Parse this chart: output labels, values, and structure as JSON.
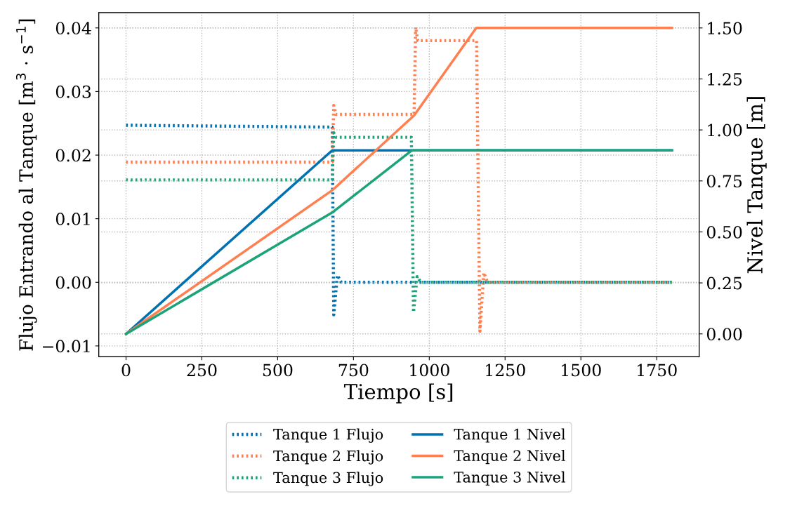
{
  "chart_data": {
    "type": "line",
    "xlabel": "Tiempo [s]",
    "ylabel": "Flujo Entrando al Tanque [m$^{3}$ · s$^{−1}$]",
    "y2label": "Nivel Tanque [m]",
    "xlim": [
      -90,
      1890
    ],
    "xticks": [
      0,
      250,
      500,
      750,
      1000,
      1250,
      1500,
      1750
    ],
    "ylim": [
      -0.0117,
      0.0424
    ],
    "yticks": [
      {
        "value": -0.01,
        "label": "−0.01"
      },
      {
        "value": 0.0,
        "label": "0.00"
      },
      {
        "value": 0.01,
        "label": "0.01"
      },
      {
        "value": 0.02,
        "label": "0.02"
      },
      {
        "value": 0.03,
        "label": "0.03"
      },
      {
        "value": 0.04,
        "label": "0.04"
      }
    ],
    "y2lim": [
      -0.112,
      1.575
    ],
    "y2ticks": [
      {
        "value": 0.0,
        "label": "0.00"
      },
      {
        "value": 0.25,
        "label": "0.25"
      },
      {
        "value": 0.5,
        "label": "0.50"
      },
      {
        "value": 0.75,
        "label": "0.75"
      },
      {
        "value": 1.0,
        "label": "1.00"
      },
      {
        "value": 1.25,
        "label": "1.25"
      },
      {
        "value": 1.5,
        "label": "1.50"
      }
    ],
    "grid": true,
    "legend": "bottom",
    "series": [
      {
        "name": "Tanque 1 Flujo",
        "color": "#0072b2",
        "line_style": "dotted",
        "x": [
          0,
          680,
          685,
          697,
          710,
          1800
        ],
        "values": [
          0.0247,
          0.0244,
          -0.0051,
          0.0011,
          0.0,
          0.0
        ]
      },
      {
        "name": "Tanque 2 Flujo",
        "color": "#ff7f50",
        "line_style": "dotted",
        "x": [
          0,
          680,
          685,
          692,
          950,
          955,
          962,
          1156,
          1167,
          1180,
          1192,
          1800
        ],
        "values": [
          0.0189,
          0.0189,
          0.0278,
          0.0264,
          0.0264,
          0.0401,
          0.038,
          0.038,
          -0.0077,
          0.0015,
          0.0,
          0.0
        ]
      },
      {
        "name": "Tanque 3 Flujo",
        "color": "#1ca37a",
        "line_style": "dotted",
        "x": [
          0,
          680,
          685,
          692,
          941,
          948,
          960,
          972,
          1800
        ],
        "values": [
          0.0161,
          0.0161,
          0.0235,
          0.0228,
          0.0228,
          -0.0047,
          0.0009,
          0.0,
          0.0
        ]
      },
      {
        "name": "Tanque 1 Nivel",
        "color": "#0072b2",
        "line_style": "solid",
        "axis": "y2",
        "x": [
          0,
          680,
          1800
        ],
        "values": [
          0.0,
          0.9,
          0.9
        ]
      },
      {
        "name": "Tanque 2 Nivel",
        "color": "#ff7f50",
        "line_style": "solid",
        "axis": "y2",
        "x": [
          0,
          680,
          950,
          1155,
          1800
        ],
        "values": [
          0.0,
          0.704,
          1.071,
          1.5,
          1.5
        ]
      },
      {
        "name": "Tanque 3 Nivel",
        "color": "#1ca37a",
        "line_style": "solid",
        "axis": "y2",
        "x": [
          0,
          680,
          943,
          1800
        ],
        "values": [
          0.0,
          0.595,
          0.9,
          0.9
        ]
      }
    ]
  }
}
